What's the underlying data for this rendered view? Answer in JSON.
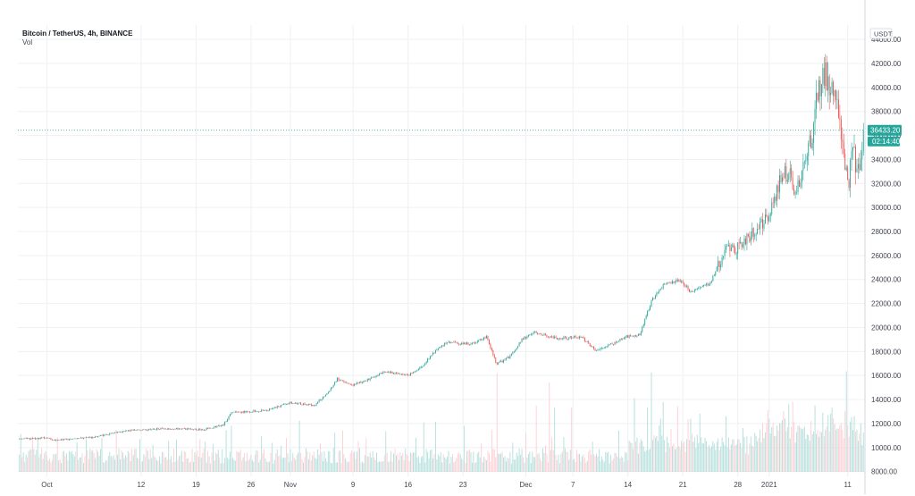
{
  "symbol_title": "Bitcoin / TetherUS, 4h, BINANCE",
  "volume_label": "Vol",
  "currency_label": "USDT",
  "last_price_label": "36433.20",
  "countdown_label": "02:14:40",
  "colors": {
    "up": "#26a69a",
    "down": "#ef5350",
    "vol_up": "#b2dfdb",
    "vol_down": "#ffcdd2",
    "grid": "#eef0f3",
    "axis_text": "#434651",
    "badge": "#26a69a"
  },
  "chart_data": {
    "type": "candlestick",
    "title": "Bitcoin / TetherUS, 4h, BINANCE",
    "subtitle": "Vol",
    "ylabel": "USDT",
    "ylim": [
      7600,
      45200
    ],
    "y_ticks": [
      8000,
      10000,
      12000,
      14000,
      16000,
      18000,
      20000,
      22000,
      24000,
      26000,
      28000,
      30000,
      32000,
      34000,
      36000,
      38000,
      40000,
      42000,
      44000
    ],
    "y_tick_labels": [
      "8000.00",
      "10000.00",
      "12000.00",
      "14000.00",
      "16000.00",
      "18000.00",
      "20000.00",
      "22000.00",
      "24000.00",
      "26000.00",
      "28000.00",
      "30000.00",
      "32000.00",
      "34000.00",
      "36000.00",
      "38000.00",
      "40000.00",
      "42000.00",
      "44000.00"
    ],
    "x_ticks": [
      {
        "label": "Oct",
        "day": 30
      },
      {
        "label": "12",
        "day": 42
      },
      {
        "label": "19",
        "day": 49
      },
      {
        "label": "26",
        "day": 56
      },
      {
        "label": "Nov",
        "day": 61
      },
      {
        "label": "9",
        "day": 69
      },
      {
        "label": "16",
        "day": 76
      },
      {
        "label": "23",
        "day": 83
      },
      {
        "label": "Dec",
        "day": 91
      },
      {
        "label": "7",
        "day": 97
      },
      {
        "label": "14",
        "day": 104
      },
      {
        "label": "21",
        "day": 111
      },
      {
        "label": "28",
        "day": 118
      },
      {
        "label": "2021",
        "day": 122
      },
      {
        "label": "11",
        "day": 132
      }
    ],
    "x_range_days": [
      26.3,
      134.2
    ],
    "candles_per_day": 6,
    "last_price": 36433.2,
    "price_path": [
      [
        26.5,
        10700
      ],
      [
        30,
        10800
      ],
      [
        31,
        10620
      ],
      [
        36,
        10860
      ],
      [
        40,
        11400
      ],
      [
        45,
        11600
      ],
      [
        50,
        11500
      ],
      [
        52.5,
        11900
      ],
      [
        53.5,
        12900
      ],
      [
        58,
        13100
      ],
      [
        61,
        13750
      ],
      [
        64,
        13500
      ],
      [
        66,
        14700
      ],
      [
        67,
        15700
      ],
      [
        69,
        15200
      ],
      [
        71,
        15700
      ],
      [
        73,
        16300
      ],
      [
        76,
        16000
      ],
      [
        78,
        16900
      ],
      [
        79,
        17800
      ],
      [
        81,
        18800
      ],
      [
        84,
        18600
      ],
      [
        86,
        19200
      ],
      [
        87.3,
        16900
      ],
      [
        89,
        17600
      ],
      [
        90.5,
        19000
      ],
      [
        92,
        19600
      ],
      [
        95,
        19100
      ],
      [
        98,
        19200
      ],
      [
        100,
        18100
      ],
      [
        102,
        18600
      ],
      [
        103.5,
        19200
      ],
      [
        105.5,
        19400
      ],
      [
        107,
        22200
      ],
      [
        108.5,
        23500
      ],
      [
        110.5,
        24000
      ],
      [
        112,
        23000
      ],
      [
        114.5,
        23700
      ],
      [
        116.5,
        26600
      ],
      [
        118,
        26600
      ],
      [
        119.5,
        27600
      ],
      [
        122,
        29300
      ],
      [
        123.5,
        32500
      ],
      [
        124.6,
        33400
      ],
      [
        125.3,
        31000
      ],
      [
        126,
        32500
      ],
      [
        127.5,
        36200
      ],
      [
        128.3,
        40200
      ],
      [
        129.2,
        41000
      ],
      [
        130,
        40000
      ],
      [
        130.8,
        38000
      ],
      [
        131.5,
        34400
      ],
      [
        132.1,
        31500
      ],
      [
        132.6,
        34900
      ],
      [
        133.2,
        33300
      ],
      [
        133.8,
        34700
      ],
      [
        134.05,
        36433
      ]
    ],
    "volume_range": [
      0,
      40000
    ],
    "volume_spikes": [
      [
        53.5,
        16500
      ],
      [
        62.2,
        18300
      ],
      [
        66.7,
        14000
      ],
      [
        78,
        17700
      ],
      [
        79.5,
        18000
      ],
      [
        87.3,
        35300
      ],
      [
        92.4,
        23700
      ],
      [
        94,
        32000
      ],
      [
        94.6,
        23000
      ],
      [
        96.9,
        23000
      ],
      [
        104.8,
        26400
      ],
      [
        106.5,
        23000
      ],
      [
        107,
        35600
      ],
      [
        108.5,
        25000
      ],
      [
        110.4,
        23500
      ],
      [
        116.5,
        20000
      ],
      [
        122,
        19000
      ],
      [
        123.6,
        18500
      ],
      [
        125,
        25000
      ],
      [
        127.8,
        23800
      ],
      [
        130,
        23000
      ],
      [
        131.8,
        36000
      ],
      [
        132.8,
        20000
      ]
    ]
  }
}
